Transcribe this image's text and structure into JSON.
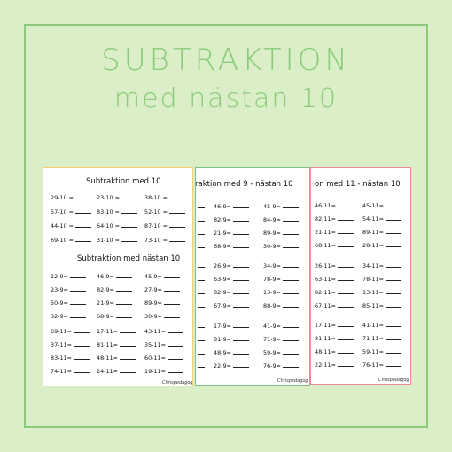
{
  "title": {
    "line1": "SUBTRAKTION",
    "line2": "med nästan 10"
  },
  "sheet1": {
    "heading1": "Subtraktion med 10",
    "heading2": "Subtraktion med nästan 10",
    "signature": "Chrispedagog",
    "section1": [
      [
        "29-10 =",
        "23-10 =",
        "38-10 ="
      ],
      [
        "57-10 =",
        "83-10 =",
        "52-10 ="
      ],
      [
        "44-10 =",
        "64-10 =",
        "87-10 ="
      ],
      [
        "69-10 =",
        "31-10 =",
        "73-10 ="
      ]
    ],
    "section2": [
      [
        "12-9=",
        "46-9=",
        "45-9="
      ],
      [
        "23-9=",
        "82-9=",
        "27-9="
      ],
      [
        "50-9=",
        "21-9=",
        "89-9="
      ],
      [
        "32-9=",
        "68-9=",
        "30-9="
      ]
    ],
    "section3": [
      [
        "69-11=",
        "17-11=",
        "43-11="
      ],
      [
        "37-11=",
        "81-11=",
        "35-11="
      ],
      [
        "83-11=",
        "48-11=",
        "60-11="
      ],
      [
        "74-11=",
        "24-11=",
        "19-11="
      ]
    ]
  },
  "sheet2": {
    "heading": "raktion med 9 - nästan 10",
    "signature": "Chrispedagog",
    "groups": [
      [
        [
          "46-9=",
          "45-9="
        ],
        [
          "82-9=",
          "84-9="
        ],
        [
          "21-9=",
          "89-9="
        ],
        [
          "68-9=",
          "30-9="
        ]
      ],
      [
        [
          "26-9=",
          "34-9="
        ],
        [
          "63-9=",
          "78-9="
        ],
        [
          "82-9=",
          "13-9="
        ],
        [
          "67-9=",
          "88-9="
        ]
      ],
      [
        [
          "17-9=",
          "41-9="
        ],
        [
          "81-9=",
          "71-9="
        ],
        [
          "48-9=",
          "59-9="
        ],
        [
          "22-9=",
          "76-9="
        ]
      ]
    ]
  },
  "sheet3": {
    "heading": "on med 11 - nästan 10",
    "signature": "Chrispedagog",
    "groups": [
      [
        [
          "46-11=",
          "45-11="
        ],
        [
          "82-11=",
          "54-11="
        ],
        [
          "21-11=",
          "89-11="
        ],
        [
          "68-11=",
          "28-11="
        ]
      ],
      [
        [
          "26-11=",
          "34-11="
        ],
        [
          "63-11=",
          "78-11="
        ],
        [
          "82-11=",
          "13-11="
        ],
        [
          "67-11=",
          "85-11="
        ]
      ],
      [
        [
          "17-11=",
          "41-11="
        ],
        [
          "81-11=",
          "71-11="
        ],
        [
          "48-11=",
          "59-11="
        ],
        [
          "22-11=",
          "76-11="
        ]
      ]
    ]
  }
}
